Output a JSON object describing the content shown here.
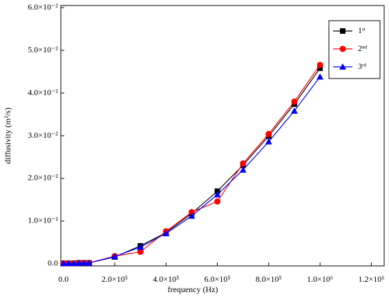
{
  "chart_data": {
    "type": "line",
    "x_label": "frequency (Hz)",
    "y_label": "diffusivity (m²/s)",
    "x": [
      0,
      20000,
      40000,
      60000,
      80000,
      100000,
      200000,
      300000,
      400000,
      500000,
      600000,
      700000,
      800000,
      900000,
      1000000
    ],
    "series": [
      {
        "name": "1ˢᵗ",
        "color": "#000000",
        "marker": "square",
        "values": [
          0.0001,
          0.0001,
          0.0001,
          0.0002,
          0.0002,
          0.0002,
          0.0016,
          0.0042,
          0.0073,
          0.0118,
          0.017,
          0.0231,
          0.0299,
          0.0374,
          0.0458
        ]
      },
      {
        "name": "2ⁿᵈ",
        "color": "#ff0000",
        "marker": "circle",
        "values": [
          0.0001,
          0.0001,
          0.0001,
          0.0002,
          0.0002,
          0.0002,
          0.0018,
          0.0028,
          0.0076,
          0.0121,
          0.0146,
          0.0235,
          0.0304,
          0.038,
          0.0466
        ]
      },
      {
        "name": "3ʳᵈ",
        "color": "#0000ff",
        "marker": "triangle",
        "values": [
          0.0001,
          0.0001,
          0.0001,
          0.0002,
          0.0002,
          0.0002,
          0.0017,
          0.0039,
          0.0071,
          0.0112,
          0.0162,
          0.022,
          0.0286,
          0.0358,
          0.0438
        ]
      }
    ],
    "xlim": [
      -10000,
      1250000
    ],
    "ylim": [
      -0.0005,
      0.0605
    ],
    "xticks": [
      {
        "value": 0,
        "label": "0.0"
      },
      {
        "value": 200000,
        "label": "2.0×10⁵"
      },
      {
        "value": 400000,
        "label": "4.0×10⁵"
      },
      {
        "value": 600000,
        "label": "6.0×10⁵"
      },
      {
        "value": 800000,
        "label": "8.0×10⁵"
      },
      {
        "value": 1000000,
        "label": "1.0×10⁶"
      },
      {
        "value": 1200000,
        "label": "1.2×10⁶"
      }
    ],
    "yticks": [
      {
        "value": 0,
        "label": "0.0"
      },
      {
        "value": 0.01,
        "label": "1.0×10⁻²"
      },
      {
        "value": 0.02,
        "label": "2.0×10⁻²"
      },
      {
        "value": 0.03,
        "label": "3.0×10⁻²"
      },
      {
        "value": 0.04,
        "label": "4.0×10⁻²"
      },
      {
        "value": 0.05,
        "label": "5.0×10⁻²"
      },
      {
        "value": 0.06,
        "label": "6.0×10⁻²"
      }
    ],
    "legend": "upper right",
    "grid": false
  }
}
